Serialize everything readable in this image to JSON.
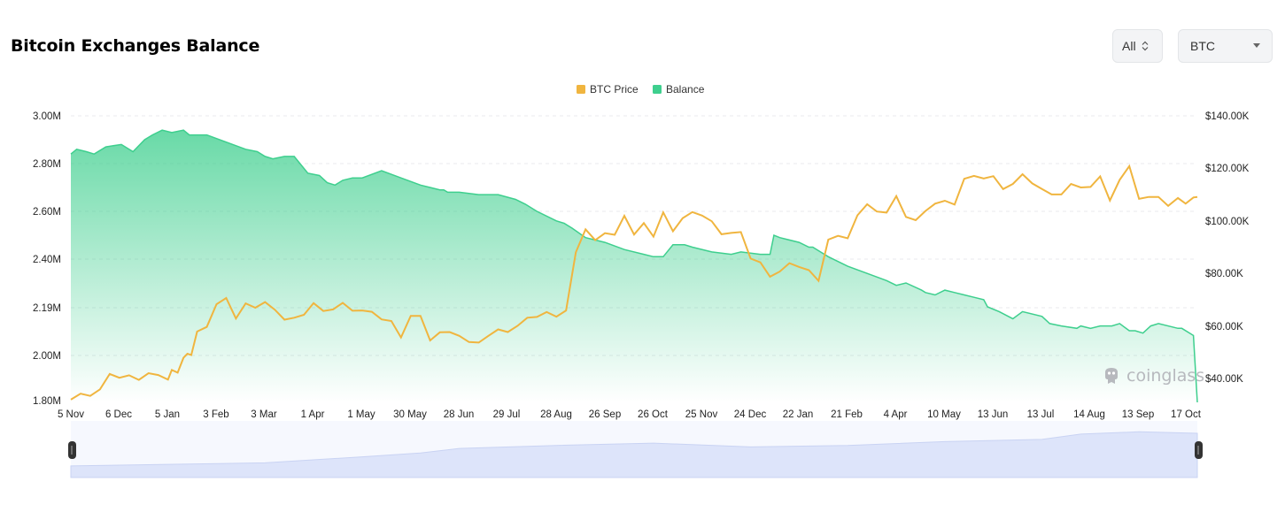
{
  "header": {
    "title": "Bitcoin Exchanges Balance",
    "range_select": "All",
    "coin_select": "BTC"
  },
  "watermark": "coinglass",
  "colors": {
    "price": "#f0b53f",
    "balance": "#3ecf8e",
    "navigator": "#dde4fa"
  },
  "chart_data": {
    "type": "line",
    "legend": [
      "BTC Price",
      "Balance"
    ],
    "legend_position": "top-center",
    "categories": [
      "5 Nov",
      "6 Dec",
      "5 Jan",
      "3 Feb",
      "3 Mar",
      "1 Apr",
      "1 May",
      "30 May",
      "28 Jun",
      "29 Jul",
      "28 Aug",
      "26 Sep",
      "26 Oct",
      "25 Nov",
      "24 Dec",
      "22 Jan",
      "21 Feb",
      "4 Apr",
      "10 May",
      "13 Jun",
      "13 Jul",
      "14 Aug",
      "13 Sep",
      "17 Oct"
    ],
    "y_left_ticks": [
      "3.00M",
      "2.80M",
      "2.60M",
      "2.40M",
      "2.19M",
      "2.00M",
      "1.80M"
    ],
    "y_right_ticks": [
      "$140.00K",
      "$120.00K",
      "$100.00K",
      "$80.00K",
      "$60.00K",
      "$40.00K"
    ],
    "y_left_range": [
      1.8,
      3.0
    ],
    "y_right_range": [
      34,
      140
    ],
    "grid": true,
    "series": [
      {
        "name": "Balance",
        "axis": "left",
        "unit": "M BTC",
        "type": "area",
        "x": [
          0,
          3,
          8,
          12,
          18,
          26,
          32,
          38,
          42,
          47,
          52,
          58,
          61,
          70,
          80,
          90,
          96,
          100,
          104,
          110,
          115,
          122,
          128,
          132,
          136,
          140,
          145,
          150,
          160,
          170,
          180,
          185,
          190,
          192,
          194,
          200,
          210,
          220,
          229,
          234,
          240,
          250,
          254,
          258,
          265,
          275,
          285,
          295,
          300,
          305,
          310,
          316,
          320,
          330,
          340,
          345,
          355,
          360,
          362,
          365,
          375,
          380,
          382,
          386,
          390,
          400,
          410,
          420,
          425,
          430,
          438,
          440,
          445,
          450,
          455,
          460,
          465,
          470,
          472,
          478,
          485,
          490,
          500,
          504,
          510,
          518,
          520,
          525,
          530,
          536,
          540,
          545,
          548,
          552,
          556,
          560,
          570,
          572,
          578,
          580
        ],
        "y": [
          2.84,
          2.86,
          2.85,
          2.84,
          2.87,
          2.88,
          2.85,
          2.9,
          2.92,
          2.94,
          2.93,
          2.94,
          2.92,
          2.92,
          2.89,
          2.86,
          2.85,
          2.83,
          2.82,
          2.83,
          2.83,
          2.76,
          2.75,
          2.72,
          2.71,
          2.73,
          2.74,
          2.74,
          2.77,
          2.74,
          2.71,
          2.7,
          2.69,
          2.69,
          2.68,
          2.68,
          2.67,
          2.67,
          2.65,
          2.63,
          2.6,
          2.56,
          2.55,
          2.53,
          2.49,
          2.47,
          2.44,
          2.42,
          2.41,
          2.41,
          2.46,
          2.46,
          2.45,
          2.43,
          2.42,
          2.43,
          2.42,
          2.42,
          2.5,
          2.49,
          2.47,
          2.45,
          2.45,
          2.43,
          2.41,
          2.37,
          2.34,
          2.31,
          2.29,
          2.3,
          2.27,
          2.26,
          2.25,
          2.27,
          2.26,
          2.25,
          2.24,
          2.23,
          2.2,
          2.18,
          2.15,
          2.18,
          2.16,
          2.13,
          2.12,
          2.11,
          2.12,
          2.11,
          2.12,
          2.12,
          2.13,
          2.1,
          2.1,
          2.09,
          2.12,
          2.13,
          2.11,
          2.11,
          2.08,
          1.8
        ]
      },
      {
        "name": "BTC Price",
        "axis": "right",
        "unit": "$K",
        "type": "line",
        "x": [
          0,
          5,
          10,
          15,
          20,
          25,
          30,
          35,
          40,
          45,
          50,
          52,
          55,
          58,
          60,
          62,
          65,
          70,
          75,
          80,
          85,
          90,
          95,
          100,
          105,
          110,
          115,
          120,
          125,
          130,
          135,
          140,
          145,
          150,
          155,
          160,
          165,
          170,
          175,
          180,
          185,
          190,
          195,
          200,
          205,
          210,
          215,
          220,
          225,
          230,
          235,
          240,
          245,
          250,
          255,
          260,
          265,
          270,
          275,
          280,
          285,
          290,
          295,
          300,
          305,
          310,
          315,
          320,
          325,
          330,
          335,
          340,
          345,
          350,
          355,
          360,
          365,
          370,
          375,
          380,
          385,
          390,
          395,
          400,
          405,
          410,
          415,
          420,
          425,
          430,
          435,
          440,
          445,
          450,
          455,
          460,
          465,
          470,
          475,
          480,
          485,
          490,
          495,
          500,
          505,
          510,
          515,
          520,
          525,
          530,
          535,
          540,
          545,
          550,
          555,
          560,
          565,
          570,
          574,
          578,
          580
        ],
        "y": [
          35.0,
          37.2,
          36.4,
          38.8,
          44.5,
          43.1,
          44.0,
          42.3,
          44.8,
          44.1,
          42.4,
          46.0,
          45.0,
          50.5,
          52.0,
          51.5,
          60.2,
          61.9,
          70.3,
          72.6,
          65.0,
          70.6,
          69.0,
          71.1,
          68.3,
          64.6,
          65.3,
          66.4,
          70.7,
          67.8,
          68.4,
          70.8,
          67.9,
          68.0,
          67.5,
          64.7,
          64.1,
          58.0,
          66.0,
          66.0,
          56.9,
          59.9,
          60.0,
          58.6,
          56.3,
          56.1,
          58.6,
          61.0,
          60.0,
          62.3,
          65.3,
          65.6,
          67.4,
          65.7,
          68.0,
          89.5,
          98.0,
          94.0,
          96.6,
          96.0,
          103.0,
          96.1,
          100.3,
          95.3,
          104.3,
          97.3,
          102.1,
          104.4,
          103.1,
          101.0,
          96.2,
          96.7,
          97.0,
          87.2,
          85.8,
          80.5,
          82.4,
          85.5,
          84.1,
          82.9,
          79.0,
          94.2,
          95.6,
          94.7,
          103.2,
          107.3,
          104.6,
          104.2,
          110.3,
          102.6,
          101.4,
          104.8,
          107.5,
          108.6,
          107.2,
          116.7,
          117.8,
          116.8,
          117.7,
          112.9,
          114.8,
          118.4,
          115.0,
          112.9,
          110.9,
          110.9,
          114.8,
          113.5,
          113.7,
          117.6,
          108.7,
          116.3,
          121.4,
          109.3,
          110.0,
          110.0,
          106.7,
          109.6,
          107.5,
          109.8,
          110.0
        ]
      }
    ],
    "navigator": {
      "x": [
        0,
        50,
        100,
        150,
        180,
        200,
        250,
        300,
        350,
        400,
        450,
        500,
        520,
        550,
        580
      ],
      "y": [
        33.0,
        35.0,
        37.0,
        45.0,
        50.0,
        56.0,
        60.0,
        63.0,
        58.0,
        60.0,
        65.0,
        68.0,
        75.0,
        78.0,
        76.0
      ]
    }
  }
}
